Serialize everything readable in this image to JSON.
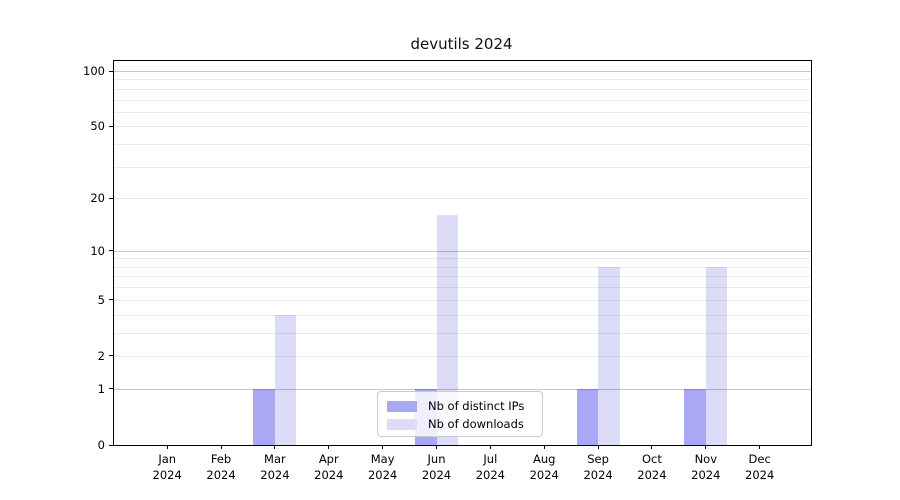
{
  "title": "devutils 2024",
  "colors": {
    "series_distinct_ips": "#a8a8f5",
    "series_downloads": "#dcdcf8",
    "major_grid": "rgba(0,0,0,0.22)",
    "minor_grid": "rgba(0,0,0,0.08)",
    "spine": "#000000",
    "legend_border": "#cccccc",
    "text": "#000000"
  },
  "chart_data": {
    "type": "bar",
    "title": "devutils 2024",
    "categories": [
      "Jan 2024",
      "Feb 2024",
      "Mar 2024",
      "Apr 2024",
      "May 2024",
      "Jun 2024",
      "Jul 2024",
      "Aug 2024",
      "Sep 2024",
      "Oct 2024",
      "Nov 2024",
      "Dec 2024"
    ],
    "series": [
      {
        "name": "Nb of distinct IPs",
        "color": "#a8a8f5",
        "values": [
          0,
          0,
          1,
          0,
          0,
          1,
          0,
          0,
          1,
          0,
          1,
          0
        ]
      },
      {
        "name": "Nb of downloads",
        "color": "#dcdcf8",
        "values": [
          0,
          0,
          4,
          0,
          0,
          16,
          0,
          0,
          8,
          0,
          8,
          0
        ]
      }
    ],
    "xlabel": "",
    "ylabel": "",
    "y_scale": "log10(1+value)",
    "ylim": [
      0,
      113
    ],
    "y_ticks": [
      0,
      1,
      2,
      5,
      10,
      20,
      50,
      100
    ],
    "y_gridlines_major": [
      1,
      10,
      100
    ],
    "y_gridlines_minor": [
      2,
      3,
      4,
      5,
      6,
      7,
      8,
      9,
      20,
      30,
      40,
      50,
      60,
      70,
      80,
      90
    ],
    "grid": "on",
    "legend_position": "lower center"
  }
}
